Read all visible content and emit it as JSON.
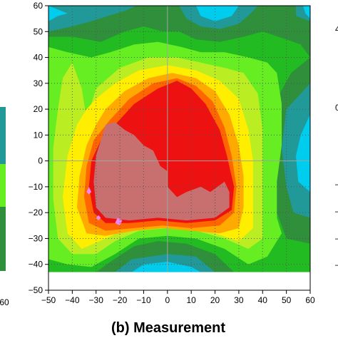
{
  "chart_data": {
    "type": "heatmap",
    "title": "",
    "caption": "(b) Measurement",
    "xlim": [
      -50,
      60
    ],
    "ylim": [
      -50,
      60
    ],
    "x_ticks": [
      -50,
      -40,
      -30,
      -20,
      -10,
      0,
      10,
      20,
      30,
      40,
      50,
      60
    ],
    "y_ticks": [
      -50,
      -40,
      -30,
      -20,
      -10,
      0,
      10,
      20,
      30,
      40,
      50,
      60
    ],
    "x_tick_labels": [
      "−50",
      "−40",
      "−30",
      "−20",
      "−10",
      "0",
      "10",
      "20",
      "30",
      "40",
      "50",
      "60"
    ],
    "y_tick_labels": [
      "−50",
      "−40",
      "−30",
      "−20",
      "−10",
      "0",
      "10",
      "20",
      "30",
      "40",
      "50",
      "60"
    ],
    "data_extent": {
      "x": [
        -50,
        60
      ],
      "y": [
        -43,
        60
      ]
    },
    "grid": true,
    "contour_levels": [
      {
        "level": 1,
        "color": "#00ccee",
        "polygons": []
      },
      {
        "level": 2,
        "color": "#229999",
        "polygons": []
      },
      {
        "level": 3,
        "color": "#2f8f3a"
      },
      {
        "level": 4,
        "color": "#22bb22"
      },
      {
        "level": 5,
        "color": "#66ee22"
      },
      {
        "level": 6,
        "color": "#bbee22"
      },
      {
        "level": 7,
        "color": "#ffee00"
      },
      {
        "level": 8,
        "color": "#ffaa00"
      },
      {
        "level": 9,
        "color": "#ff6600"
      },
      {
        "level": 10,
        "color": "#ee1111"
      },
      {
        "level": 11,
        "color": "#c87070"
      },
      {
        "level": 12,
        "color": "#ee88ee"
      }
    ],
    "regions": {
      "cyan_top_left": [
        [
          -50,
          60
        ],
        [
          -50,
          54
        ],
        [
          -46,
          56
        ],
        [
          -42,
          57
        ],
        [
          -50,
          60
        ]
      ],
      "cyan_top_mid": [
        [
          12,
          60
        ],
        [
          14,
          56
        ],
        [
          20,
          54
        ],
        [
          27,
          56
        ],
        [
          30,
          60
        ]
      ],
      "cyan_top_right": [
        [
          57,
          60
        ],
        [
          60,
          60
        ],
        [
          60,
          55
        ],
        [
          58,
          57
        ]
      ],
      "cyan_right": [
        [
          60,
          18
        ],
        [
          56,
          10
        ],
        [
          54,
          2
        ],
        [
          55,
          -8
        ],
        [
          60,
          -12
        ]
      ],
      "cyan_bottom": [
        [
          -15,
          -43
        ],
        [
          -10,
          -40
        ],
        [
          0,
          -39
        ],
        [
          10,
          -41
        ],
        [
          14,
          -43
        ]
      ],
      "teal_right": [
        [
          60,
          30
        ],
        [
          50,
          20
        ],
        [
          48,
          5
        ],
        [
          50,
          -10
        ],
        [
          53,
          -20
        ],
        [
          60,
          -22
        ]
      ],
      "teal_top": [
        [
          -50,
          60
        ],
        [
          -50,
          50
        ],
        [
          -40,
          52
        ],
        [
          -32,
          54
        ],
        [
          -25,
          56
        ],
        [
          -18,
          58
        ],
        [
          -13,
          60
        ]
      ],
      "teal_top2": [
        [
          5,
          60
        ],
        [
          8,
          55
        ],
        [
          14,
          52
        ],
        [
          22,
          51
        ],
        [
          30,
          53
        ],
        [
          35,
          57
        ],
        [
          38,
          60
        ]
      ],
      "teal_top3": [
        [
          54,
          60
        ],
        [
          54,
          56
        ],
        [
          57,
          55
        ],
        [
          60,
          54
        ],
        [
          60,
          60
        ]
      ],
      "teal_bottom": [
        [
          -22,
          -43
        ],
        [
          -15,
          -38
        ],
        [
          0,
          -36
        ],
        [
          12,
          -37
        ],
        [
          20,
          -43
        ]
      ]
    },
    "layers": [
      {
        "color": "#2f8f3a",
        "points": [
          [
            -50,
            60
          ],
          [
            60,
            60
          ],
          [
            60,
            -43
          ],
          [
            -50,
            -43
          ]
        ]
      },
      {
        "color": "#22bb22",
        "points": [
          [
            -50,
            48
          ],
          [
            -40,
            48
          ],
          [
            -28,
            46
          ],
          [
            -18,
            50
          ],
          [
            -10,
            52
          ],
          [
            -2,
            50
          ],
          [
            5,
            50
          ],
          [
            12,
            47
          ],
          [
            22,
            46
          ],
          [
            32,
            48
          ],
          [
            40,
            50
          ],
          [
            50,
            47
          ],
          [
            56,
            45
          ],
          [
            60,
            40
          ],
          [
            52,
            34
          ],
          [
            46,
            24
          ],
          [
            44,
            10
          ],
          [
            44,
            -4
          ],
          [
            46,
            -20
          ],
          [
            50,
            -30
          ],
          [
            60,
            -32
          ],
          [
            60,
            -43
          ],
          [
            28,
            -43
          ],
          [
            20,
            -36
          ],
          [
            8,
            -32
          ],
          [
            -4,
            -31
          ],
          [
            -14,
            -33
          ],
          [
            -24,
            -39
          ],
          [
            -30,
            -43
          ],
          [
            -50,
            -43
          ]
        ]
      },
      {
        "color": "#66ee22",
        "points": [
          [
            -50,
            44
          ],
          [
            -42,
            42
          ],
          [
            -32,
            40
          ],
          [
            -24,
            42
          ],
          [
            -14,
            45
          ],
          [
            -4,
            46
          ],
          [
            6,
            44
          ],
          [
            14,
            42
          ],
          [
            24,
            42
          ],
          [
            34,
            40
          ],
          [
            42,
            38
          ],
          [
            46,
            34
          ],
          [
            48,
            22
          ],
          [
            48,
            6
          ],
          [
            46,
            -8
          ],
          [
            46,
            -22
          ],
          [
            48,
            -28
          ],
          [
            42,
            -37
          ],
          [
            34,
            -40
          ],
          [
            24,
            -34
          ],
          [
            12,
            -30
          ],
          [
            0,
            -29
          ],
          [
            -12,
            -30
          ],
          [
            -22,
            -36
          ],
          [
            -32,
            -41
          ],
          [
            -42,
            -40
          ],
          [
            -50,
            -38
          ]
        ]
      },
      {
        "color": "#bbee22",
        "points": [
          [
            -40,
            38
          ],
          [
            -36,
            28
          ],
          [
            -34,
            16
          ],
          [
            -30,
            28
          ],
          [
            -20,
            36
          ],
          [
            -8,
            40
          ],
          [
            4,
            40
          ],
          [
            14,
            38
          ],
          [
            24,
            36
          ],
          [
            32,
            34
          ],
          [
            38,
            26
          ],
          [
            40,
            12
          ],
          [
            40,
            -4
          ],
          [
            40,
            -20
          ],
          [
            40,
            -30
          ],
          [
            34,
            -34
          ],
          [
            24,
            -30
          ],
          [
            12,
            -27
          ],
          [
            0,
            -26
          ],
          [
            -12,
            -27
          ],
          [
            -22,
            -31
          ],
          [
            -30,
            -36
          ],
          [
            -40,
            -36
          ],
          [
            -46,
            -30
          ],
          [
            -48,
            -15
          ],
          [
            -48,
            5
          ],
          [
            -46,
            20
          ],
          [
            -44,
            32
          ]
        ]
      },
      {
        "color": "#ffee00",
        "points": [
          [
            -30,
            24
          ],
          [
            -22,
            30
          ],
          [
            -12,
            35
          ],
          [
            0,
            37
          ],
          [
            12,
            35
          ],
          [
            22,
            31
          ],
          [
            30,
            24
          ],
          [
            34,
            12
          ],
          [
            36,
            0
          ],
          [
            36,
            -14
          ],
          [
            36,
            -26
          ],
          [
            30,
            -31
          ],
          [
            20,
            -28
          ],
          [
            8,
            -26
          ],
          [
            -4,
            -25
          ],
          [
            -16,
            -26
          ],
          [
            -26,
            -30
          ],
          [
            -36,
            -34
          ],
          [
            -42,
            -28
          ],
          [
            -44,
            -14
          ],
          [
            -42,
            2
          ],
          [
            -38,
            14
          ],
          [
            -34,
            20
          ]
        ]
      },
      {
        "color": "#ffaa00",
        "points": [
          [
            -26,
            20
          ],
          [
            -18,
            27
          ],
          [
            -8,
            32
          ],
          [
            2,
            34
          ],
          [
            12,
            32
          ],
          [
            20,
            27
          ],
          [
            26,
            18
          ],
          [
            30,
            6
          ],
          [
            32,
            -6
          ],
          [
            32,
            -18
          ],
          [
            30,
            -26
          ],
          [
            22,
            -28
          ],
          [
            10,
            -27
          ],
          [
            -2,
            -26
          ],
          [
            -14,
            -27
          ],
          [
            -26,
            -29
          ],
          [
            -34,
            -28
          ],
          [
            -38,
            -18
          ],
          [
            -37,
            -6
          ],
          [
            -34,
            6
          ],
          [
            -30,
            14
          ]
        ]
      },
      {
        "color": "#ff6600",
        "points": [
          [
            -24,
            16
          ],
          [
            -16,
            24
          ],
          [
            -6,
            30
          ],
          [
            4,
            32
          ],
          [
            12,
            29
          ],
          [
            19,
            23
          ],
          [
            24,
            13
          ],
          [
            27,
            2
          ],
          [
            29,
            -10
          ],
          [
            28,
            -20
          ],
          [
            22,
            -25
          ],
          [
            10,
            -26
          ],
          [
            -2,
            -25
          ],
          [
            -14,
            -26
          ],
          [
            -26,
            -27
          ],
          [
            -33,
            -24
          ],
          [
            -35,
            -14
          ],
          [
            -34,
            -2
          ],
          [
            -31,
            8
          ]
        ]
      },
      {
        "color": "#ee1111",
        "points": [
          [
            -22,
            14
          ],
          [
            -14,
            22
          ],
          [
            -4,
            28
          ],
          [
            4,
            31
          ],
          [
            10,
            28
          ],
          [
            16,
            22
          ],
          [
            22,
            12
          ],
          [
            25,
            2
          ],
          [
            28,
            -10
          ],
          [
            27,
            -19
          ],
          [
            20,
            -23
          ],
          [
            8,
            -24
          ],
          [
            -4,
            -23
          ],
          [
            -16,
            -24
          ],
          [
            -26,
            -24
          ],
          [
            -31,
            -20
          ],
          [
            -33,
            -10
          ],
          [
            -32,
            0
          ],
          [
            -28,
            8
          ]
        ]
      },
      {
        "color": "#c87070",
        "points": [
          [
            -26,
            14
          ],
          [
            -22,
            15
          ],
          [
            -18,
            12
          ],
          [
            -14,
            10
          ],
          [
            -10,
            6
          ],
          [
            -6,
            4
          ],
          [
            -3,
            -2
          ],
          [
            0,
            -4
          ],
          [
            0,
            -10
          ],
          [
            4,
            -14
          ],
          [
            8,
            -12
          ],
          [
            14,
            -10
          ],
          [
            18,
            -12
          ],
          [
            24,
            -8
          ],
          [
            26,
            -12
          ],
          [
            26,
            -18
          ],
          [
            20,
            -22
          ],
          [
            8,
            -23
          ],
          [
            -4,
            -22
          ],
          [
            -16,
            -23
          ],
          [
            -26,
            -22
          ],
          [
            -30,
            -18
          ],
          [
            -31,
            -8
          ],
          [
            -30,
            2
          ],
          [
            -28,
            8
          ]
        ]
      },
      {
        "color": "#ee88ee",
        "points": [
          [
            -34,
            -12
          ],
          [
            -33,
            -10
          ],
          [
            -32,
            -12
          ],
          [
            -33,
            -13
          ]
        ]
      },
      {
        "color": "#ee88ee",
        "points": [
          [
            -22,
            -24
          ],
          [
            -21,
            -22
          ],
          [
            -19,
            -23
          ],
          [
            -20,
            -25
          ]
        ]
      },
      {
        "color": "#ee88ee",
        "points": [
          [
            -30,
            -22
          ],
          [
            -29,
            -21
          ],
          [
            -28,
            -22
          ],
          [
            -29,
            -23
          ]
        ]
      }
    ]
  }
}
